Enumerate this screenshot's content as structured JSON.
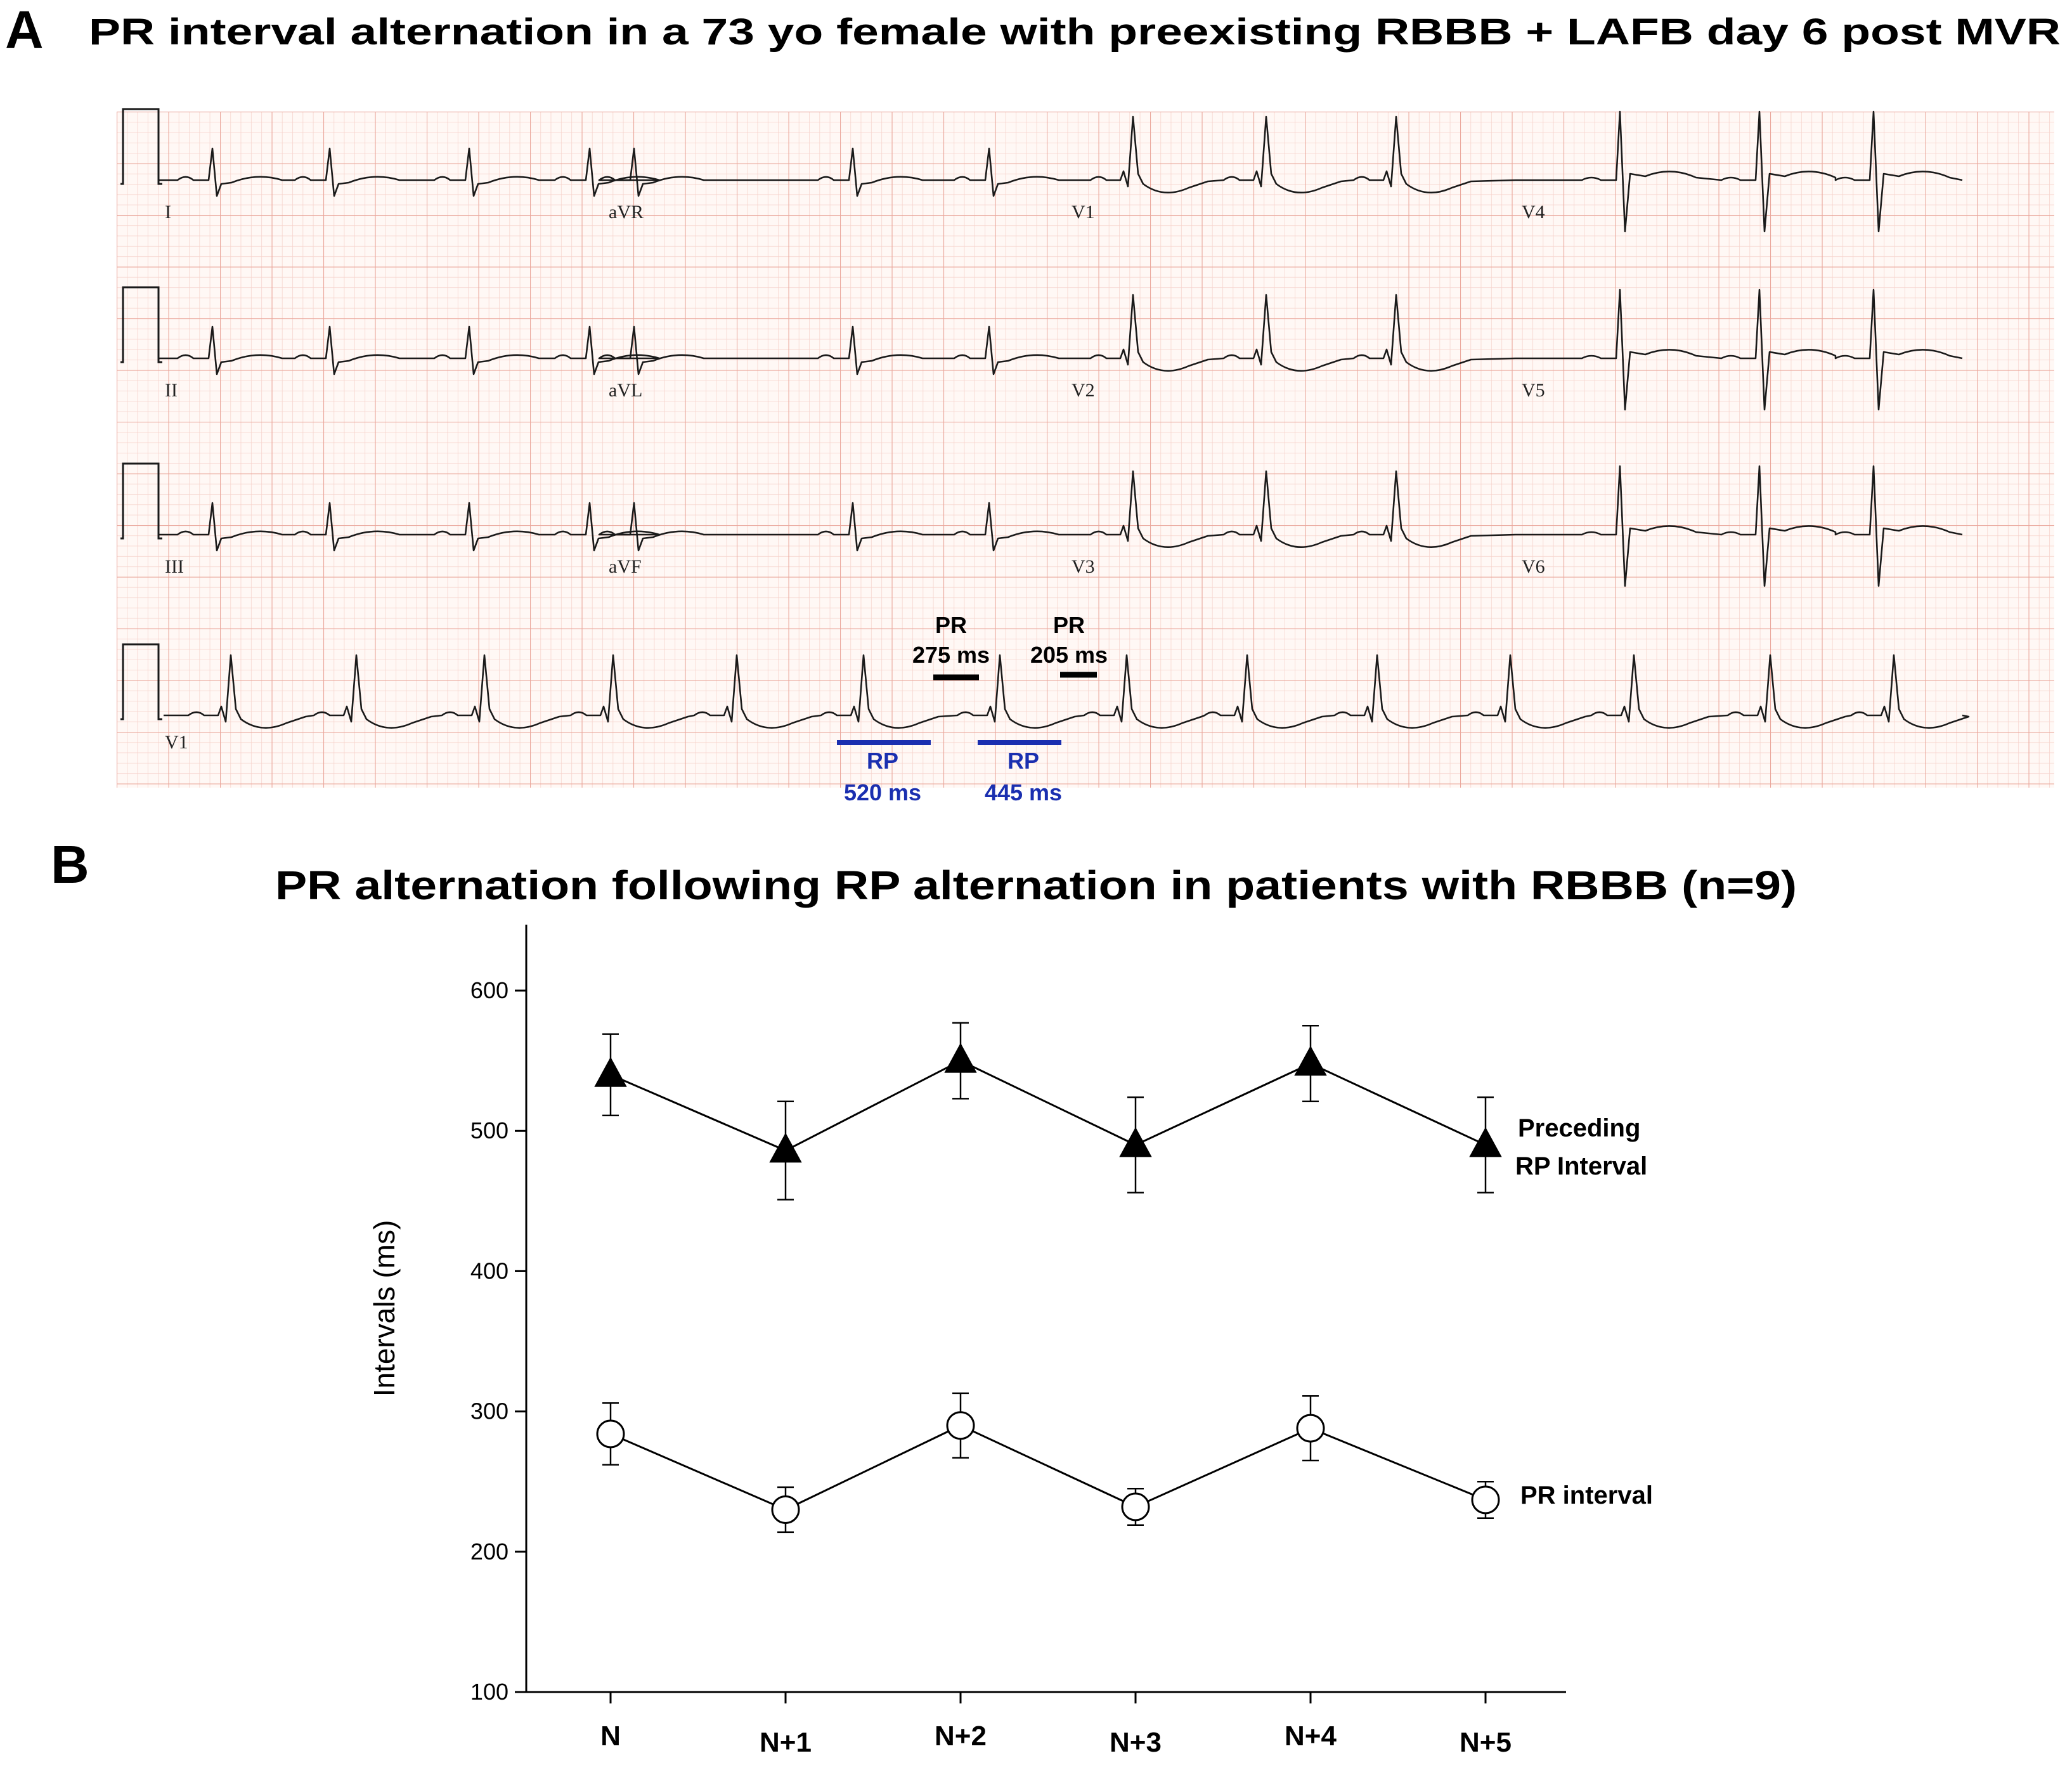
{
  "panel_a": {
    "letter": "A",
    "title": "PR interval alternation in a 73 yo female with preexisting RBBB + LAFB day 6 post MVR",
    "lead_labels": [
      "I",
      "aVR",
      "V1",
      "V4",
      "II",
      "aVL",
      "V2",
      "V5",
      "III",
      "aVF",
      "V3",
      "V6",
      "V1"
    ],
    "annotations": {
      "pr1_label": "PR",
      "pr1_value": "275 ms",
      "pr2_label": "PR",
      "pr2_value": "205 ms",
      "rp1_label": "RP",
      "rp1_value": "520 ms",
      "rp2_label": "RP",
      "rp2_value": "445 ms"
    },
    "colors": {
      "grid_minor": "#f6d2cb",
      "grid_major": "#eaa79c",
      "trace": "#1a1a1a",
      "rp_bar": "#1a2fb0",
      "pr_bar": "#000000"
    }
  },
  "panel_b": {
    "letter": "B"
  },
  "chart_data": {
    "type": "line",
    "title": "PR alternation following RP alternation in patients with RBBB (n=9)",
    "xlabel": "",
    "ylabel": "Intervals (ms)",
    "ylim": [
      100,
      650
    ],
    "yticks": [
      100,
      200,
      300,
      400,
      500,
      600
    ],
    "categories": [
      "N",
      "N+1",
      "N+2",
      "N+3",
      "N+4",
      "N+5"
    ],
    "grid": false,
    "series": [
      {
        "name_line1": "Preceding",
        "name_line2": "RP Interval",
        "marker": "filled-triangle",
        "values": [
          540,
          486,
          550,
          490,
          548,
          490
        ],
        "error": [
          29,
          35,
          27,
          34,
          27,
          34
        ]
      },
      {
        "name": "PR interval",
        "marker": "open-circle",
        "values": [
          284,
          230,
          290,
          232,
          288,
          237
        ],
        "error": [
          22,
          16,
          23,
          13,
          23,
          13
        ]
      }
    ]
  }
}
